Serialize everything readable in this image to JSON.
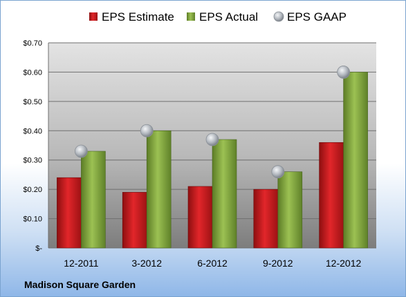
{
  "company": "Madison Square Garden",
  "chart_data": {
    "type": "bar",
    "categories": [
      "12-2011",
      "3-2012",
      "6-2012",
      "9-2012",
      "12-2012"
    ],
    "series": [
      {
        "name": "EPS Estimate",
        "kind": "bar",
        "color": "#c0191c",
        "values": [
          0.24,
          0.19,
          0.21,
          0.2,
          0.36
        ]
      },
      {
        "name": "EPS Actual",
        "kind": "bar",
        "color": "#7ea33a",
        "values": [
          0.33,
          0.4,
          0.37,
          0.26,
          0.6
        ]
      },
      {
        "name": "EPS GAAP",
        "kind": "marker",
        "color": "#b8bec6",
        "values": [
          0.33,
          0.4,
          0.37,
          0.26,
          0.6
        ]
      }
    ],
    "ylim": [
      0,
      0.7
    ],
    "yticks": [
      0,
      0.1,
      0.2,
      0.3,
      0.4,
      0.5,
      0.6,
      0.7
    ],
    "ytick_labels": [
      "$-",
      "$0.10",
      "$0.20",
      "$0.30",
      "$0.40",
      "$0.50",
      "$0.60",
      "$0.70"
    ],
    "grid": true,
    "legend_position": "top"
  }
}
